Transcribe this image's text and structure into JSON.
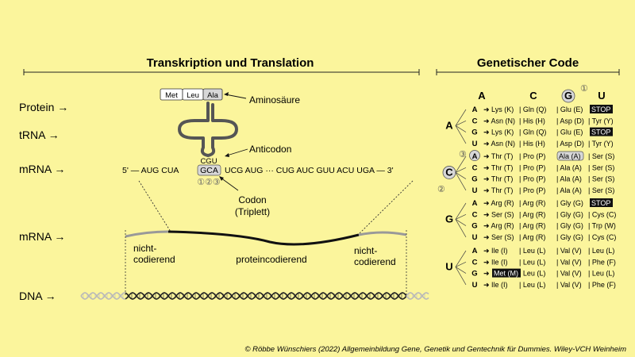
{
  "headings": {
    "left": "Transkription und Translation",
    "right": "Genetischer Code"
  },
  "rows": {
    "protein": "Protein →",
    "trna": "tRNA →",
    "mrna": "mRNA →",
    "mrna2": "mRNA →",
    "dna": "DNA →"
  },
  "protein_chain": [
    "Met",
    "Leu",
    "Ala"
  ],
  "labels": {
    "aminosaeure": "Aminosäure",
    "anticodon": "Anticodon",
    "anticodon_seq": "CGU",
    "codon_line1": "Codon",
    "codon_line2": "(Triplett)",
    "codon_numbers": "①②③"
  },
  "mrna_seq": {
    "prefix": "5' — AUG CUA",
    "codon": "GCA",
    "suffix": "UCG AUG ··· CUG AUC GUU ACU UGA — 3'"
  },
  "regions": {
    "left_line1": "nicht-",
    "left_line2": "codierend",
    "middle": "proteincodierend",
    "right_line1": "nicht-",
    "right_line2": "codierend"
  },
  "code_table": {
    "columns": [
      "A",
      "C",
      "G",
      "U"
    ],
    "column_marker": "①",
    "groups": [
      {
        "letter": "A",
        "rows": [
          {
            "third": "A",
            "cells": [
              "➜ Lys (K)",
              "| Gln (Q)",
              "| Glu (E)",
              "STOP"
            ]
          },
          {
            "third": "C",
            "cells": [
              "➜ Asn (N)",
              "| His (H)",
              "| Asp (D)",
              "| Tyr (Y)"
            ]
          },
          {
            "third": "G",
            "cells": [
              "➜ Lys (K)",
              "| Gln (Q)",
              "| Glu (E)",
              "STOP"
            ]
          },
          {
            "third": "U",
            "cells": [
              "➜ Asn (N)",
              "| His (H)",
              "| Asp (D)",
              "| Tyr (Y)"
            ]
          }
        ]
      },
      {
        "letter": "C",
        "rows": [
          {
            "third": "A",
            "cells": [
              "➜ Thr (T)",
              "| Pro (P)",
              "Ala (A)",
              "| Ser (S)"
            ]
          },
          {
            "third": "C",
            "cells": [
              "➜ Thr (T)",
              "| Pro (P)",
              "| Ala (A)",
              "| Ser (S)"
            ]
          },
          {
            "third": "G",
            "cells": [
              "➜ Thr (T)",
              "| Pro (P)",
              "| Ala (A)",
              "| Ser (S)"
            ]
          },
          {
            "third": "U",
            "cells": [
              "➜ Thr (T)",
              "| Pro (P)",
              "| Ala (A)",
              "| Ser (S)"
            ]
          }
        ]
      },
      {
        "letter": "G",
        "rows": [
          {
            "third": "A",
            "cells": [
              "➜ Arg (R)",
              "| Arg (R)",
              "| Gly (G)",
              "STOP"
            ]
          },
          {
            "third": "C",
            "cells": [
              "➜ Ser (S)",
              "| Arg (R)",
              "| Gly (G)",
              "| Cys (C)"
            ]
          },
          {
            "third": "G",
            "cells": [
              "➜ Arg (R)",
              "| Arg (R)",
              "| Gly (G)",
              "| Trp (W)"
            ]
          },
          {
            "third": "U",
            "cells": [
              "➜ Ser (S)",
              "| Arg (R)",
              "| Gly (G)",
              "| Cys (C)"
            ]
          }
        ]
      },
      {
        "letter": "U",
        "rows": [
          {
            "third": "A",
            "cells": [
              "➜ Ile (I)",
              "| Leu (L)",
              "| Val (V)",
              "| Leu (L)"
            ]
          },
          {
            "third": "C",
            "cells": [
              "➜ Ile (I)",
              "| Leu (L)",
              "| Val (V)",
              "| Phe (F)"
            ]
          },
          {
            "third": "G",
            "cells": [
              "Met (M)",
              "| Leu (L)",
              "| Val (V)",
              "| Leu (L)"
            ]
          },
          {
            "third": "U",
            "cells": [
              "➜ Ile (I)",
              "| Leu (L)",
              "| Val (V)",
              "| Phe (F)"
            ]
          }
        ]
      }
    ],
    "markers": {
      "first": "②",
      "third": "③",
      "arrow": "➜"
    }
  },
  "copyright": "© Röbbe Wünschiers (2022) Allgemeinbildung Gene, Genetik und Gentechnik für Dummies. Wiley-VCH Weinheim",
  "colors": {
    "background": "#fbf59c",
    "stop_bg": "#111111",
    "highlight": "#d7d7d7",
    "helix_gray": "#b9b9b9"
  }
}
